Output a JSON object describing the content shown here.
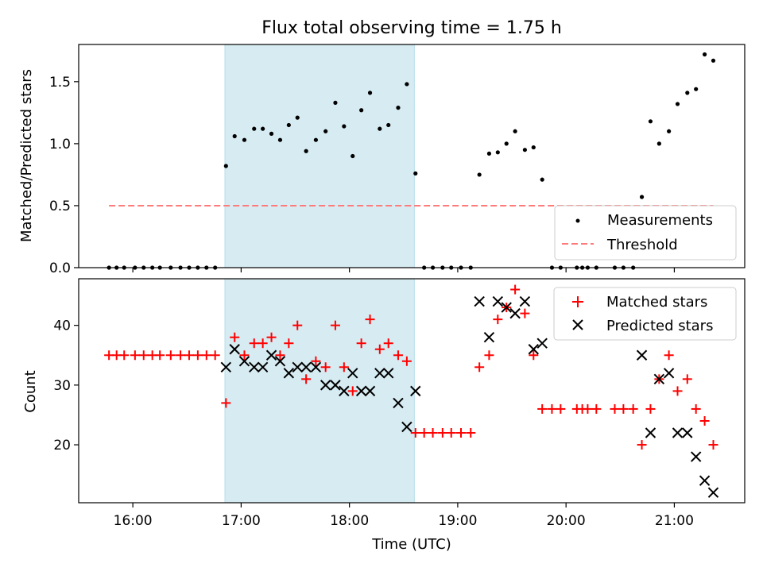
{
  "chart_data": [
    {
      "type": "scatter",
      "title": "Flux total observing time = 1.75 h",
      "ylabel": "Matched/Predicted stars",
      "xlabel": "",
      "xlim": [
        15.5,
        21.65
      ],
      "ylim": [
        0,
        1.8
      ],
      "yticks": [
        0.0,
        0.5,
        1.0,
        1.5
      ],
      "ytick_labels": [
        "0.0",
        "0.5",
        "1.0",
        "1.5"
      ],
      "highlight_span": [
        16.85,
        18.6
      ],
      "legend_position": "lower-right",
      "series": [
        {
          "name": "Measurements",
          "marker": "dot",
          "color": "#000000",
          "points": [
            [
              15.78,
              0
            ],
            [
              15.85,
              0
            ],
            [
              15.92,
              0
            ],
            [
              16.02,
              0
            ],
            [
              16.1,
              0
            ],
            [
              16.18,
              0
            ],
            [
              16.25,
              0
            ],
            [
              16.35,
              0
            ],
            [
              16.44,
              0
            ],
            [
              16.52,
              0
            ],
            [
              16.6,
              0
            ],
            [
              16.68,
              0
            ],
            [
              16.76,
              0
            ],
            [
              16.86,
              0.82
            ],
            [
              16.94,
              1.06
            ],
            [
              17.03,
              1.03
            ],
            [
              17.12,
              1.12
            ],
            [
              17.2,
              1.12
            ],
            [
              17.28,
              1.08
            ],
            [
              17.36,
              1.03
            ],
            [
              17.44,
              1.15
            ],
            [
              17.52,
              1.21
            ],
            [
              17.6,
              0.94
            ],
            [
              17.69,
              1.03
            ],
            [
              17.78,
              1.1
            ],
            [
              17.87,
              1.33
            ],
            [
              17.95,
              1.14
            ],
            [
              18.03,
              0.9
            ],
            [
              18.11,
              1.27
            ],
            [
              18.19,
              1.41
            ],
            [
              18.28,
              1.12
            ],
            [
              18.36,
              1.15
            ],
            [
              18.45,
              1.29
            ],
            [
              18.53,
              1.48
            ],
            [
              18.61,
              0.76
            ],
            [
              18.69,
              0
            ],
            [
              18.77,
              0
            ],
            [
              18.86,
              0
            ],
            [
              18.94,
              0
            ],
            [
              19.03,
              0
            ],
            [
              19.12,
              0
            ],
            [
              19.2,
              0.75
            ],
            [
              19.29,
              0.92
            ],
            [
              19.37,
              0.93
            ],
            [
              19.45,
              1.0
            ],
            [
              19.53,
              1.1
            ],
            [
              19.62,
              0.95
            ],
            [
              19.7,
              0.97
            ],
            [
              19.78,
              0.71
            ],
            [
              19.87,
              0
            ],
            [
              19.95,
              0
            ],
            [
              20.1,
              0
            ],
            [
              20.15,
              0
            ],
            [
              20.2,
              0
            ],
            [
              20.28,
              0
            ],
            [
              20.45,
              0
            ],
            [
              20.53,
              0
            ],
            [
              20.62,
              0
            ],
            [
              20.7,
              0.57
            ],
            [
              20.78,
              1.18
            ],
            [
              20.86,
              1.0
            ],
            [
              20.95,
              1.1
            ],
            [
              21.03,
              1.32
            ],
            [
              21.12,
              1.41
            ],
            [
              21.2,
              1.44
            ],
            [
              21.28,
              1.72
            ],
            [
              21.36,
              1.67
            ]
          ]
        },
        {
          "name": "Threshold",
          "marker": "dashed-line",
          "color": "#ff7b7b",
          "points": [
            [
              15.78,
              0.5
            ],
            [
              21.36,
              0.5
            ]
          ]
        }
      ]
    },
    {
      "type": "scatter",
      "title": "",
      "ylabel": "Count",
      "xlabel": "Time (UTC)",
      "xlim": [
        15.5,
        21.65
      ],
      "ylim": [
        10.3,
        47.8
      ],
      "yticks": [
        20,
        30,
        40
      ],
      "ytick_labels": [
        "20",
        "30",
        "40"
      ],
      "xticks": [
        16,
        17,
        18,
        19,
        20,
        21
      ],
      "xtick_labels": [
        "16:00",
        "17:00",
        "18:00",
        "19:00",
        "20:00",
        "21:00"
      ],
      "highlight_span": [
        16.85,
        18.6
      ],
      "legend_position": "upper-right",
      "series": [
        {
          "name": "Matched stars",
          "marker": "plus",
          "color": "#ff0000",
          "points": [
            [
              15.78,
              35
            ],
            [
              15.85,
              35
            ],
            [
              15.92,
              35
            ],
            [
              16.02,
              35
            ],
            [
              16.1,
              35
            ],
            [
              16.18,
              35
            ],
            [
              16.25,
              35
            ],
            [
              16.35,
              35
            ],
            [
              16.44,
              35
            ],
            [
              16.52,
              35
            ],
            [
              16.6,
              35
            ],
            [
              16.68,
              35
            ],
            [
              16.76,
              35
            ],
            [
              16.86,
              27
            ],
            [
              16.94,
              38
            ],
            [
              17.03,
              35
            ],
            [
              17.12,
              37
            ],
            [
              17.2,
              37
            ],
            [
              17.28,
              38
            ],
            [
              17.36,
              35
            ],
            [
              17.44,
              37
            ],
            [
              17.52,
              40
            ],
            [
              17.6,
              31
            ],
            [
              17.69,
              34
            ],
            [
              17.78,
              33
            ],
            [
              17.87,
              40
            ],
            [
              17.95,
              33
            ],
            [
              18.03,
              29
            ],
            [
              18.11,
              37
            ],
            [
              18.19,
              41
            ],
            [
              18.28,
              36
            ],
            [
              18.36,
              37
            ],
            [
              18.45,
              35
            ],
            [
              18.53,
              34
            ],
            [
              18.61,
              22
            ],
            [
              18.69,
              22
            ],
            [
              18.77,
              22
            ],
            [
              18.86,
              22
            ],
            [
              18.94,
              22
            ],
            [
              19.03,
              22
            ],
            [
              19.12,
              22
            ],
            [
              19.2,
              33
            ],
            [
              19.29,
              35
            ],
            [
              19.37,
              41
            ],
            [
              19.45,
              43
            ],
            [
              19.53,
              46
            ],
            [
              19.62,
              42
            ],
            [
              19.7,
              35
            ],
            [
              19.78,
              26
            ],
            [
              19.87,
              26
            ],
            [
              19.95,
              26
            ],
            [
              20.1,
              26
            ],
            [
              20.15,
              26
            ],
            [
              20.2,
              26
            ],
            [
              20.28,
              26
            ],
            [
              20.45,
              26
            ],
            [
              20.53,
              26
            ],
            [
              20.62,
              26
            ],
            [
              20.7,
              20
            ],
            [
              20.78,
              26
            ],
            [
              20.86,
              31
            ],
            [
              20.95,
              35
            ],
            [
              21.03,
              29
            ],
            [
              21.12,
              31
            ],
            [
              21.2,
              26
            ],
            [
              21.28,
              24
            ],
            [
              21.36,
              20
            ]
          ]
        },
        {
          "name": "Predicted stars",
          "marker": "x",
          "color": "#000000",
          "points": [
            [
              16.86,
              33
            ],
            [
              16.94,
              36
            ],
            [
              17.03,
              34
            ],
            [
              17.12,
              33
            ],
            [
              17.2,
              33
            ],
            [
              17.28,
              35
            ],
            [
              17.36,
              34
            ],
            [
              17.44,
              32
            ],
            [
              17.52,
              33
            ],
            [
              17.6,
              33
            ],
            [
              17.69,
              33
            ],
            [
              17.78,
              30
            ],
            [
              17.87,
              30
            ],
            [
              17.95,
              29
            ],
            [
              18.03,
              32
            ],
            [
              18.11,
              29
            ],
            [
              18.19,
              29
            ],
            [
              18.28,
              32
            ],
            [
              18.36,
              32
            ],
            [
              18.45,
              27
            ],
            [
              18.53,
              23
            ],
            [
              18.61,
              29
            ],
            [
              19.2,
              44
            ],
            [
              19.29,
              38
            ],
            [
              19.37,
              44
            ],
            [
              19.45,
              43
            ],
            [
              19.53,
              42
            ],
            [
              19.62,
              44
            ],
            [
              19.7,
              36
            ],
            [
              19.78,
              37
            ],
            [
              20.7,
              35
            ],
            [
              20.78,
              22
            ],
            [
              20.86,
              31
            ],
            [
              20.95,
              32
            ],
            [
              21.03,
              22
            ],
            [
              21.12,
              22
            ],
            [
              21.2,
              18
            ],
            [
              21.28,
              14
            ],
            [
              21.36,
              12
            ]
          ]
        }
      ]
    }
  ]
}
